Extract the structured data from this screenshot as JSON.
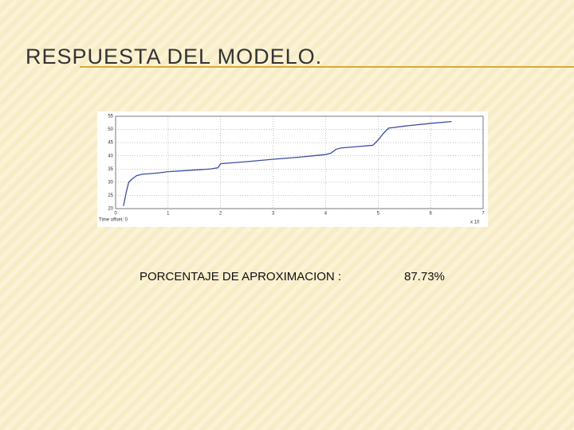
{
  "slide": {
    "title": "RESPUESTA DEL MODELO.",
    "label": "PORCENTAJE DE APROXIMACION :",
    "value": "87.73%"
  },
  "chart_data": {
    "type": "line",
    "x": [
      0.15,
      0.2,
      0.25,
      0.3,
      0.4,
      0.5,
      0.8,
      1.0,
      1.4,
      1.8,
      1.95,
      2.0,
      2.5,
      3.0,
      3.5,
      4.0,
      4.1,
      4.2,
      4.3,
      4.6,
      4.9,
      5.0,
      5.1,
      5.2,
      5.6,
      6.0,
      6.4
    ],
    "series": [
      {
        "color": "#3a4fa0",
        "values": [
          21,
          26,
          30,
          31,
          32.5,
          33,
          33.5,
          34,
          34.5,
          35,
          35.5,
          37,
          37.8,
          38.7,
          39.5,
          40.5,
          41,
          42.5,
          43,
          43.5,
          44,
          46,
          48.5,
          50.5,
          51.5,
          52.3,
          53
        ]
      }
    ],
    "xlim": [
      0,
      7
    ],
    "xticks": [
      0,
      1,
      2,
      3,
      4,
      5,
      6,
      7
    ],
    "ylim": [
      20,
      55
    ],
    "yticks": [
      20,
      25,
      30,
      35,
      40,
      45,
      50,
      55
    ],
    "grid": true,
    "annotations": [
      "Time offset: 0",
      "x 10"
    ]
  }
}
